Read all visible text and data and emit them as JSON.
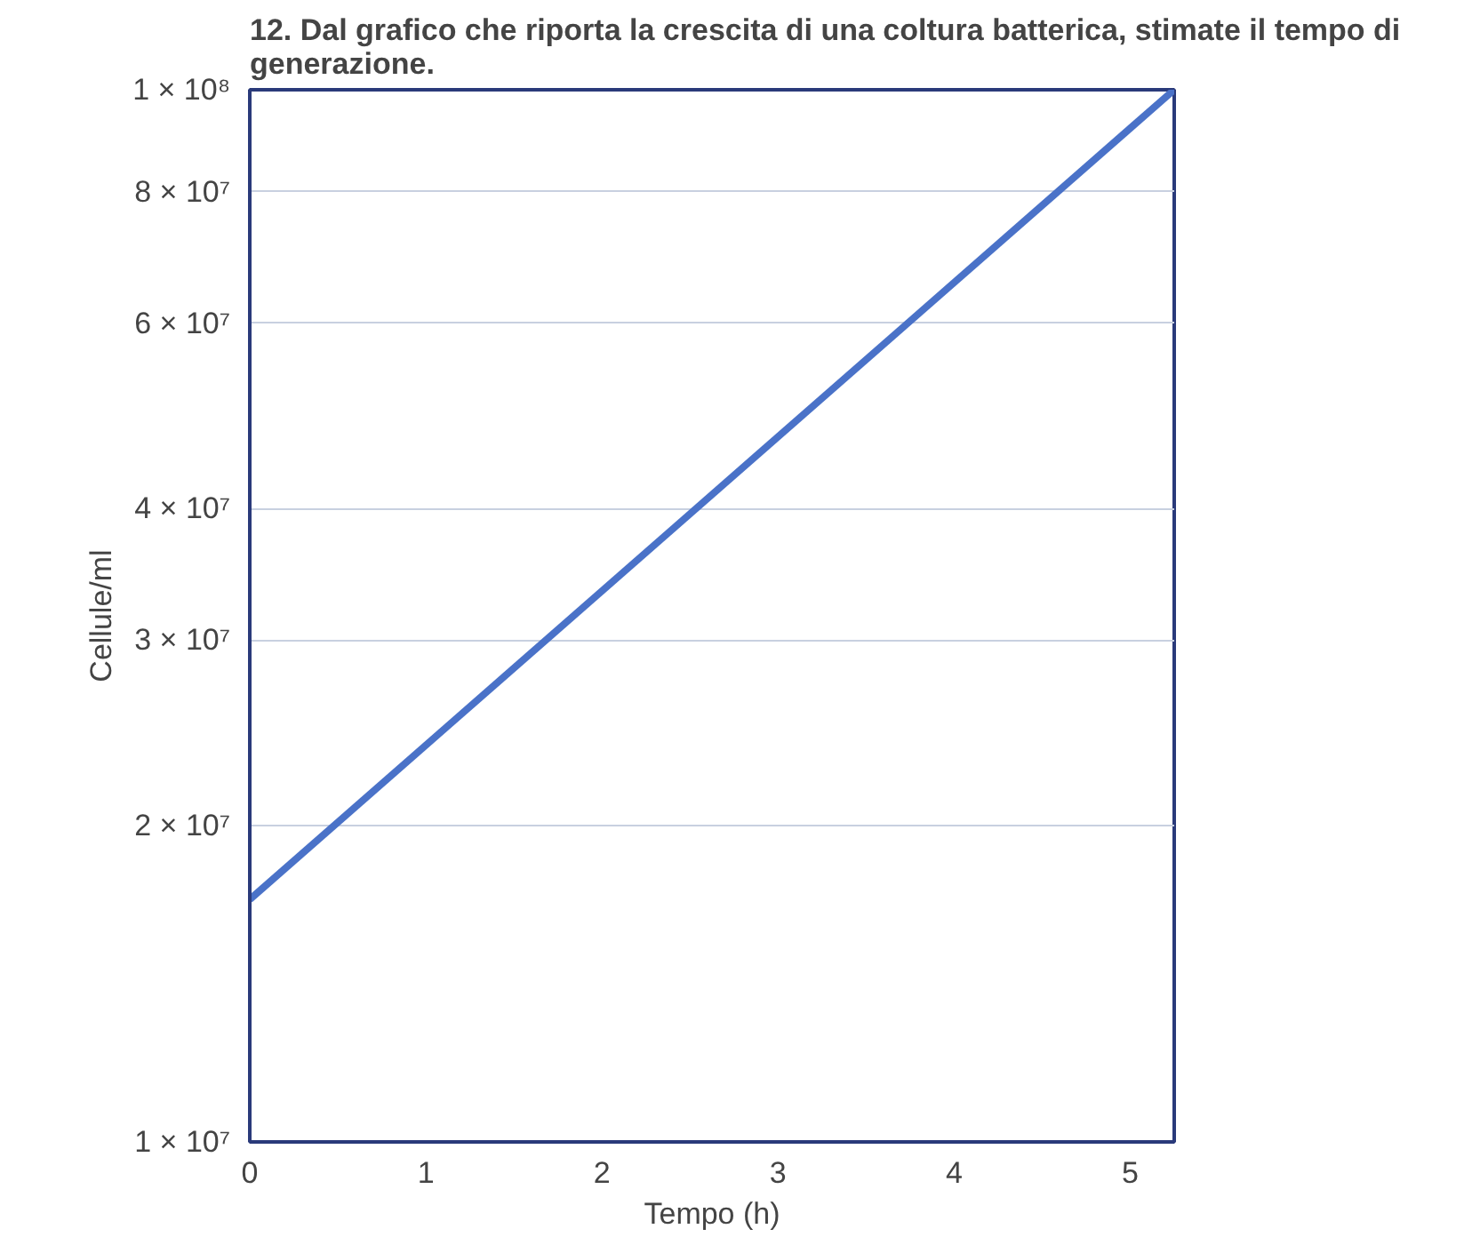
{
  "chart_data": {
    "type": "line",
    "title": "12. Dal grafico che riporta la crescita di una coltura batterica, stimate il tempo di generazione.",
    "xlabel": "Tempo (h)",
    "ylabel": "Cellule/ml",
    "x": [
      0,
      5.25
    ],
    "series": [
      {
        "color": "#4a72c8",
        "values": [
          17000000,
          100000000
        ]
      }
    ],
    "log": "y",
    "xlim": [
      0,
      5.25
    ],
    "ylim": [
      10000000,
      100000000
    ],
    "xticks": [
      0,
      1,
      2,
      3,
      4,
      5
    ],
    "yticks": [
      {
        "value": 10000000,
        "label": "1 × 10⁷"
      },
      {
        "value": 20000000,
        "label": "2 × 10⁷"
      },
      {
        "value": 30000000,
        "label": "3 × 10⁷"
      },
      {
        "value": 40000000,
        "label": "4 × 10⁷"
      },
      {
        "value": 60000000,
        "label": "6 × 10⁷"
      },
      {
        "value": 80000000,
        "label": "8 × 10⁷"
      },
      {
        "value": 100000000,
        "label": "1 × 10⁸"
      }
    ],
    "grid": "y",
    "marker": "none",
    "line_style": "solid"
  }
}
